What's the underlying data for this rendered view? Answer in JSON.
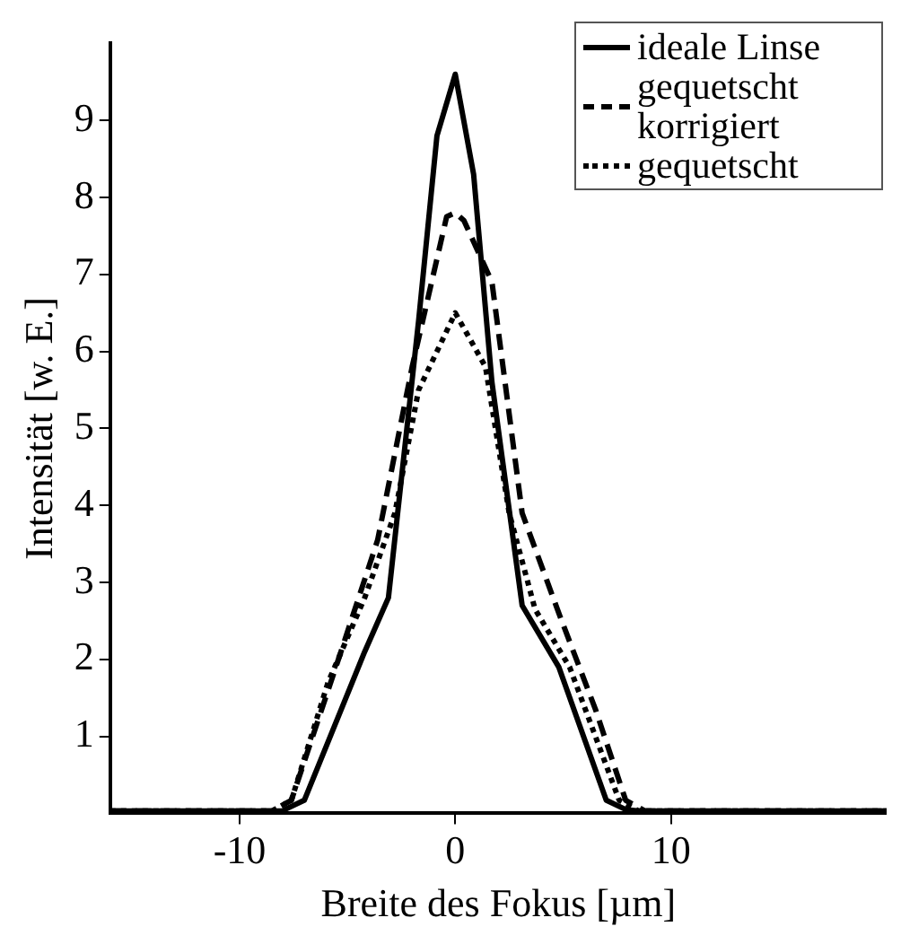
{
  "chart_data": {
    "type": "line",
    "xlabel": "Breite des Fokus [µm]",
    "ylabel": "Intensität [w. E.]",
    "xlim": [
      -16,
      20
    ],
    "ylim": [
      0,
      10
    ],
    "xticks": [
      -10,
      0,
      10
    ],
    "yticks": [
      1,
      2,
      3,
      4,
      5,
      6,
      7,
      8,
      9
    ],
    "grid": false,
    "legend": "top right",
    "marker": "none",
    "series": [
      {
        "name": "ideale Linse",
        "color": "#000000",
        "line_style": "solid",
        "x": [
          -16,
          -8,
          -7.9,
          -7,
          -4.2,
          -3.1,
          -1.7,
          -0.85,
          0,
          0.85,
          1.7,
          3.1,
          4.8,
          7,
          7.9,
          8.5,
          20
        ],
        "values": [
          0.03,
          0.03,
          0.05,
          0.17,
          2.1,
          2.8,
          6.4,
          8.8,
          9.6,
          8.3,
          5.6,
          2.7,
          1.9,
          0.17,
          0.05,
          0.03,
          0.03
        ]
      },
      {
        "name": "gequetscht korrigiert",
        "color": "#000000",
        "line_style": "dashed",
        "x": [
          -16,
          -8.5,
          -7.6,
          -5.3,
          -3.6,
          -2,
          -0.4,
          0,
          0.4,
          1.7,
          3.1,
          4.8,
          6.5,
          7.9,
          8.8,
          20
        ],
        "values": [
          0.03,
          0.03,
          0.17,
          2.1,
          3.55,
          5.8,
          7.75,
          7.8,
          7.7,
          6.9,
          3.9,
          2.6,
          1.35,
          0.17,
          0.03,
          0.03
        ]
      },
      {
        "name": "gequetscht",
        "color": "#000000",
        "line_style": "dotted",
        "x": [
          -16,
          -8.5,
          -7.6,
          -5.9,
          -4.2,
          -2.8,
          -1.7,
          0,
          1.4,
          2.5,
          3.7,
          5.3,
          7.6,
          8.5,
          20
        ],
        "values": [
          0.03,
          0.03,
          0.17,
          1.7,
          2.8,
          3.9,
          5.5,
          6.5,
          5.8,
          3.9,
          2.65,
          1.9,
          0.17,
          0.03,
          0.03
        ]
      }
    ]
  }
}
